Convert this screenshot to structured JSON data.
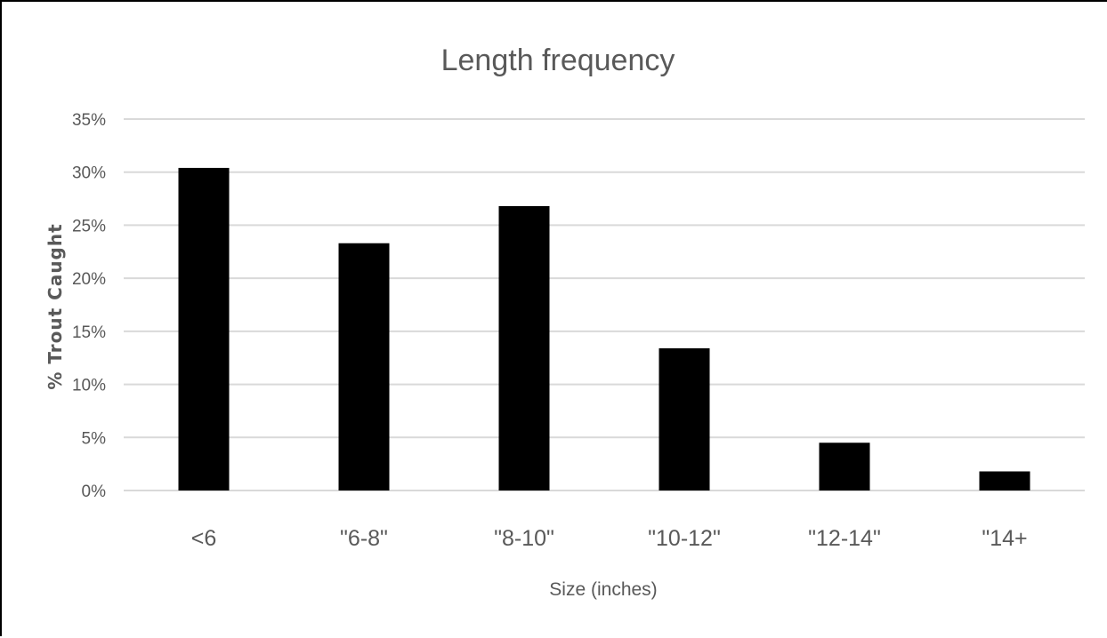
{
  "chart_data": {
    "type": "bar",
    "title": "Length frequency",
    "xlabel": "Size (inches)",
    "ylabel": "% Trout Caught",
    "categories": [
      "<6",
      "\"6-8\"",
      "\"8-10\"",
      "\"10-12\"",
      "\"12-14\"",
      "\"14+"
    ],
    "values": [
      30.4,
      23.3,
      26.8,
      13.4,
      4.5,
      1.8
    ],
    "y_ticks": [
      "0%",
      "5%",
      "10%",
      "15%",
      "20%",
      "25%",
      "30%",
      "35%"
    ],
    "ylim": [
      0,
      35
    ],
    "grid": true,
    "legend": "none",
    "colors": {
      "bar": "#000000",
      "grid": "#d9d9d9",
      "text": "#595959"
    }
  }
}
